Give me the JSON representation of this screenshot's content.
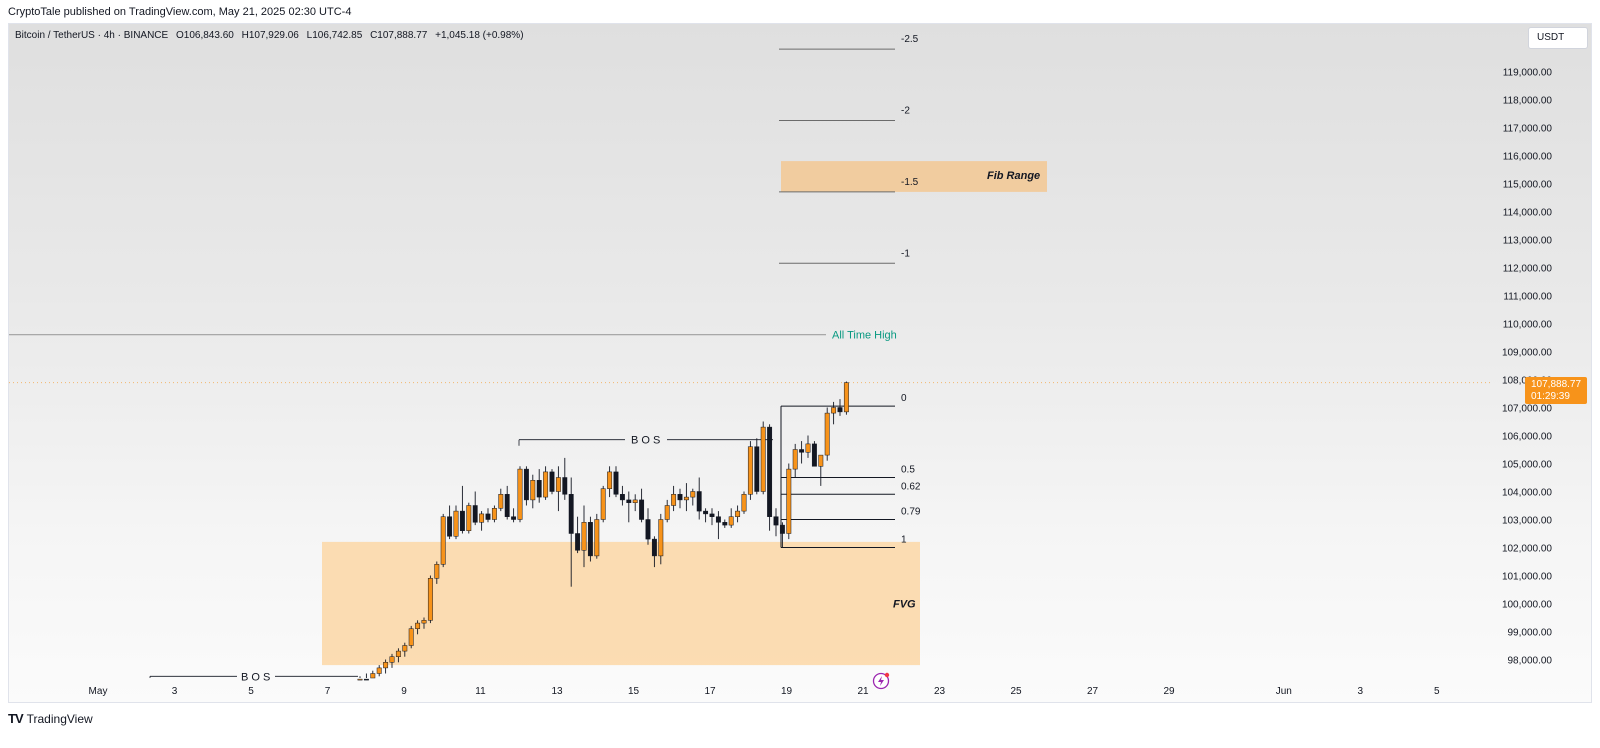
{
  "header": {
    "published": "CryptoTale published on TradingView.com, May 21, 2025 02:30 UTC-4"
  },
  "symbol": {
    "name": "Bitcoin / TetherUS · 4h · BINANCE",
    "open": "O106,843.60",
    "high": "H107,929.06",
    "low": "L106,742.85",
    "close": "C107,888.77",
    "change": "+1,045.18 (+0.98%)"
  },
  "currency": "USDT",
  "last_price": {
    "value": "107,888.77",
    "countdown": "01:29:39",
    "color": "#f7931a"
  },
  "footer": {
    "brand": "TradingView"
  },
  "chart_data": {
    "type": "candlestick",
    "ylim": [
      97000,
      121000
    ],
    "y_ticks": [
      98000,
      99000,
      100000,
      101000,
      102000,
      103000,
      104000,
      105000,
      106000,
      107000,
      108000,
      109000,
      110000,
      111000,
      112000,
      113000,
      114000,
      115000,
      116000,
      117000,
      118000,
      119000
    ],
    "y_tick_labels": [
      "98,000.00",
      "99,000.00",
      "100,000.00",
      "101,000.00",
      "102,000.00",
      "103,000.00",
      "104,000.00",
      "105,000.00",
      "106,000.00",
      "107,000.00",
      "108,000.00",
      "109,000.00",
      "110,000.00",
      "111,000.00",
      "112,000.00",
      "113,000.00",
      "114,000.00",
      "115,000.00",
      "116,000.00",
      "117,000.00",
      "118,000.00",
      "119,000.00"
    ],
    "x_ticks": [
      {
        "day": 1,
        "label": "May"
      },
      {
        "day": 3,
        "label": "3"
      },
      {
        "day": 5,
        "label": "5"
      },
      {
        "day": 7,
        "label": "7"
      },
      {
        "day": 9,
        "label": "9"
      },
      {
        "day": 11,
        "label": "11"
      },
      {
        "day": 13,
        "label": "13"
      },
      {
        "day": 15,
        "label": "15"
      },
      {
        "day": 17,
        "label": "17"
      },
      {
        "day": 19,
        "label": "19"
      },
      {
        "day": 21,
        "label": "21"
      },
      {
        "day": 23,
        "label": "23"
      },
      {
        "day": 25,
        "label": "25"
      },
      {
        "day": 27,
        "label": "27"
      },
      {
        "day": 29,
        "label": "29"
      },
      {
        "day": 32,
        "label": "Jun"
      },
      {
        "day": 34,
        "label": "3"
      },
      {
        "day": 36,
        "label": "5"
      }
    ],
    "colors": {
      "up": "#f7931a",
      "down": "#131722"
    },
    "candles": [
      [
        97100,
        97400,
        96900,
        97300
      ],
      [
        97300,
        97500,
        97100,
        97200
      ],
      [
        97200,
        97600,
        97100,
        97500
      ],
      [
        97500,
        97800,
        97400,
        97700
      ],
      [
        97700,
        98000,
        97500,
        97900
      ],
      [
        97900,
        98200,
        97700,
        98100
      ],
      [
        98100,
        98400,
        97900,
        98300
      ],
      [
        98300,
        98600,
        98100,
        98500
      ],
      [
        98500,
        99200,
        98400,
        99100
      ],
      [
        99100,
        99400,
        98900,
        99300
      ],
      [
        99300,
        99500,
        99100,
        99400
      ],
      [
        99400,
        101000,
        99300,
        100900
      ],
      [
        100900,
        101500,
        100700,
        101400
      ],
      [
        101400,
        103200,
        101300,
        103100
      ],
      [
        103100,
        103500,
        102300,
        102400
      ],
      [
        102400,
        103500,
        102300,
        103300
      ],
      [
        103300,
        104200,
        102500,
        102600
      ],
      [
        102600,
        103600,
        102500,
        103500
      ],
      [
        103500,
        104000,
        102800,
        102900
      ],
      [
        102900,
        103300,
        102600,
        103200
      ],
      [
        103200,
        103400,
        102900,
        103000
      ],
      [
        103000,
        103500,
        102900,
        103400
      ],
      [
        103400,
        104100,
        103300,
        103900
      ],
      [
        103900,
        104200,
        103000,
        103100
      ],
      [
        103100,
        103400,
        102900,
        103000
      ],
      [
        103000,
        104900,
        102900,
        104800
      ],
      [
        104800,
        104900,
        103500,
        103700
      ],
      [
        103700,
        104600,
        103400,
        104400
      ],
      [
        104400,
        104800,
        103600,
        103800
      ],
      [
        103800,
        104900,
        103700,
        104700
      ],
      [
        104700,
        104800,
        103900,
        104000
      ],
      [
        104000,
        104900,
        103300,
        104500
      ],
      [
        104500,
        105200,
        103700,
        103900
      ],
      [
        103900,
        104500,
        100600,
        102500
      ],
      [
        102500,
        103100,
        101800,
        101900
      ],
      [
        101900,
        103500,
        101300,
        102900
      ],
      [
        102900,
        103100,
        101500,
        101700
      ],
      [
        101700,
        103200,
        101600,
        103000
      ],
      [
        103000,
        104200,
        102900,
        104100
      ],
      [
        104100,
        104900,
        103800,
        104700
      ],
      [
        104700,
        104900,
        103800,
        103900
      ],
      [
        103900,
        104200,
        103500,
        103700
      ],
      [
        103700,
        104000,
        102900,
        103600
      ],
      [
        103600,
        103900,
        103300,
        103700
      ],
      [
        103700,
        104100,
        102900,
        103000
      ],
      [
        103000,
        103400,
        102100,
        102300
      ],
      [
        102300,
        102400,
        101300,
        101700
      ],
      [
        101700,
        103200,
        101400,
        103000
      ],
      [
        103000,
        103700,
        102900,
        103500
      ],
      [
        103500,
        104200,
        103300,
        103900
      ],
      [
        103900,
        104100,
        103400,
        103700
      ],
      [
        103700,
        104300,
        103300,
        103800
      ],
      [
        103800,
        104100,
        103500,
        104000
      ],
      [
        104000,
        104500,
        103000,
        103300
      ],
      [
        103300,
        103400,
        102900,
        103200
      ],
      [
        103200,
        103400,
        102800,
        103100
      ],
      [
        103100,
        103300,
        102300,
        102900
      ],
      [
        102900,
        103000,
        102700,
        102800
      ],
      [
        102800,
        103400,
        102700,
        103100
      ],
      [
        103100,
        103500,
        102900,
        103300
      ],
      [
        103300,
        104000,
        103200,
        103900
      ],
      [
        103900,
        105800,
        103700,
        105600
      ],
      [
        105600,
        105900,
        103900,
        104000
      ],
      [
        104000,
        106500,
        103900,
        106300
      ],
      [
        106300,
        106400,
        102600,
        103100
      ],
      [
        103100,
        103400,
        102400,
        102800
      ],
      [
        102800,
        102900,
        102000,
        102500
      ],
      [
        102500,
        105000,
        102300,
        104800
      ],
      [
        104800,
        105700,
        104500,
        105500
      ],
      [
        105500,
        105800,
        105000,
        105400
      ],
      [
        105400,
        106000,
        105200,
        105700
      ],
      [
        105700,
        105800,
        104900,
        104900
      ],
      [
        104900,
        105200,
        104200,
        105300
      ],
      [
        105300,
        107000,
        105100,
        106800
      ],
      [
        106800,
        107200,
        106400,
        107000
      ],
      [
        107000,
        107300,
        106700,
        106843.6
      ],
      [
        106843.6,
        107929.06,
        106742.85,
        107888.77
      ]
    ],
    "fib_levels": [
      {
        "label": "-2.5",
        "price": 119800
      },
      {
        "label": "-2",
        "price": 117250
      },
      {
        "label": "-1.5",
        "price": 114700
      },
      {
        "label": "-1",
        "price": 112150
      },
      {
        "label": "0",
        "price": 107050
      },
      {
        "label": "0.5",
        "price": 104500
      },
      {
        "label": "0.62",
        "price": 103900
      },
      {
        "label": "0.79",
        "price": 103000
      },
      {
        "label": "1",
        "price": 102000
      }
    ],
    "annotations": {
      "ath_label": "All Time High",
      "ath_price": 109600,
      "fib_range_label": "Fib Range",
      "fib_range_zone": [
        114700,
        115800
      ],
      "fvg_label": "FVG",
      "fvg_zone": [
        97800,
        102200
      ],
      "bos_upper_label": "B O S",
      "bos_upper_price": 105850,
      "bos_lower_label": "B O S",
      "bos_lower_price": 97400
    }
  }
}
